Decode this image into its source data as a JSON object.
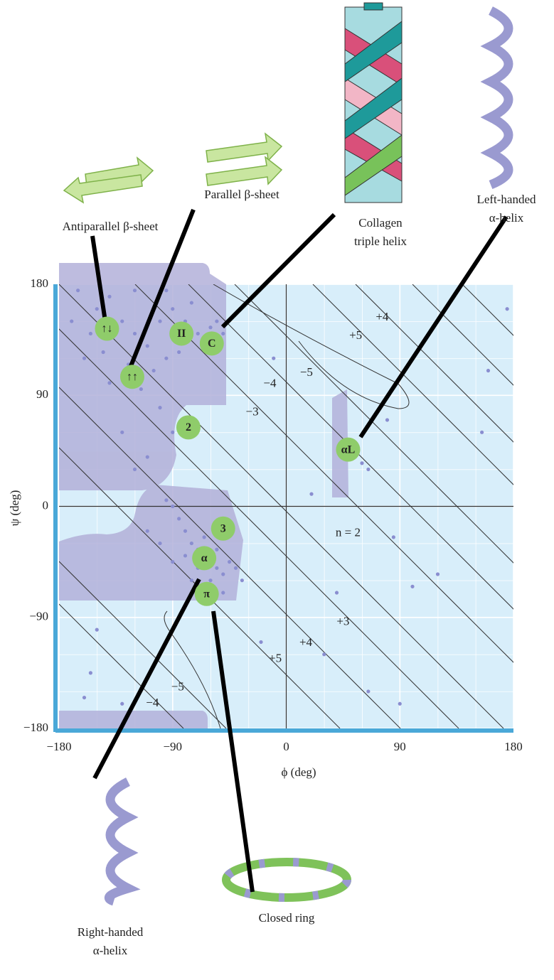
{
  "chart_data": {
    "type": "scatter",
    "x_label": "ϕ (deg)",
    "y_label": "ψ (deg)",
    "xlim": [
      -180,
      180
    ],
    "ylim": [
      -180,
      180
    ],
    "xticks": [
      {
        "value": -180,
        "label": "−180"
      },
      {
        "value": -90,
        "label": "−90"
      },
      0,
      90,
      180
    ],
    "yticks": [
      {
        "value": -180,
        "label": "−180"
      },
      {
        "value": -90,
        "label": "−90"
      },
      0,
      90,
      180
    ],
    "grid": true,
    "series": [
      {
        "color": "#8a8ed0",
        "x": [
          -150,
          -140,
          -130,
          -120,
          -110,
          -100,
          -90,
          -80,
          -70,
          -60,
          -75,
          -155,
          -165,
          -145,
          -125,
          -105,
          -95,
          -85,
          -65,
          -55,
          -50,
          -140,
          -115,
          -160,
          -170,
          -95,
          -120,
          -100,
          -130,
          -90,
          -110,
          -120,
          -60,
          -65,
          -70,
          -55,
          -75,
          -80,
          -85,
          -90,
          -95,
          -60,
          -50,
          -70,
          -65,
          -55,
          -45,
          -40,
          -80,
          -100,
          -110,
          -75,
          -60,
          -50,
          -35,
          -90,
          50,
          55,
          60,
          45,
          65,
          -150,
          -155,
          -160,
          -130,
          -10,
          20,
          85,
          100,
          120,
          175,
          160,
          155,
          80,
          65,
          -20,
          40,
          90,
          30
        ],
        "y": [
          160,
          170,
          150,
          140,
          130,
          150,
          160,
          150,
          140,
          145,
          165,
          140,
          175,
          125,
          115,
          110,
          120,
          125,
          130,
          150,
          140,
          100,
          95,
          120,
          150,
          175,
          175,
          80,
          60,
          60,
          40,
          30,
          -45,
          -40,
          -35,
          -50,
          -30,
          -20,
          -10,
          0,
          5,
          -60,
          -55,
          -50,
          -25,
          -35,
          -45,
          -50,
          -40,
          -30,
          -20,
          -60,
          -70,
          -70,
          -60,
          -45,
          40,
          45,
          35,
          50,
          30,
          -100,
          -135,
          -155,
          -160,
          120,
          10,
          -25,
          -65,
          -55,
          160,
          110,
          60,
          70,
          -150,
          -110,
          -70,
          -160,
          -120
        ]
      }
    ],
    "markers": [
      {
        "label": "↑↓",
        "x": -142,
        "y": 144
      },
      {
        "label": "↑↑",
        "x": -122,
        "y": 105
      },
      {
        "label": "II",
        "x": -83,
        "y": 140
      },
      {
        "label": "C",
        "x": -59,
        "y": 132
      },
      {
        "label": "2",
        "x": -77.5,
        "y": 64
      },
      {
        "label": "αL",
        "x": 49,
        "y": 46
      },
      {
        "label": "3",
        "x": -50,
        "y": -18
      },
      {
        "label": "α",
        "x": -65,
        "y": -42
      },
      {
        "label": "π",
        "x": -63,
        "y": -71
      }
    ],
    "contour_labels": [
      {
        "label": "+4",
        "x": 76,
        "y": 153
      },
      {
        "label": "+5",
        "x": 55,
        "y": 138
      },
      {
        "label": "−5",
        "x": 16,
        "y": 108
      },
      {
        "label": "−4",
        "x": -13,
        "y": 99
      },
      {
        "label": "−3",
        "x": -27,
        "y": 76
      },
      {
        "label": "n = 2",
        "x": 49,
        "y": -22
      },
      {
        "label": "+3",
        "x": 45,
        "y": -94
      },
      {
        "label": "+4",
        "x": 15.5,
        "y": -111
      },
      {
        "label": "+5",
        "x": -8.7,
        "y": -124
      },
      {
        "label": "−5",
        "x": -86,
        "y": -147
      },
      {
        "label": "−4",
        "x": -106,
        "y": -160
      }
    ],
    "callouts": [
      {
        "lines": [
          "Antiparallel β-sheet"
        ]
      },
      {
        "lines": [
          "Parallel β-sheet"
        ]
      },
      {
        "lines": [
          "Collagen",
          "triple helix"
        ]
      },
      {
        "lines": [
          "Left-handed",
          "α-helix"
        ]
      },
      {
        "lines": [
          "Right-handed",
          "α-helix"
        ]
      },
      {
        "lines": [
          "Closed ring"
        ]
      }
    ]
  }
}
